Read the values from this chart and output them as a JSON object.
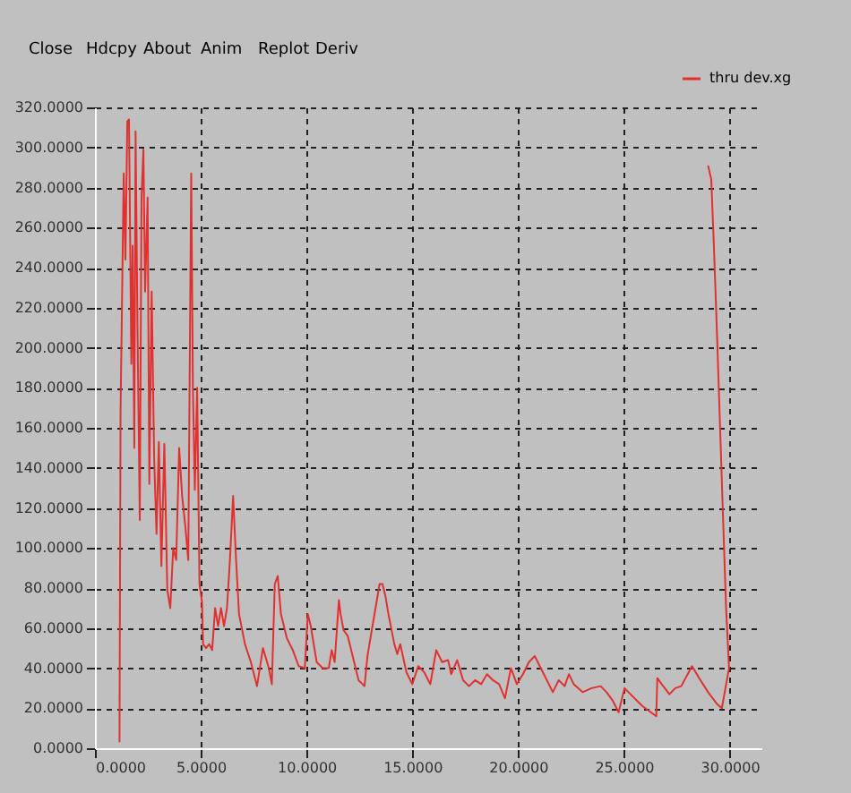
{
  "chart_data": {
    "type": "line",
    "annotations": [
      "Close",
      "Hdcpy",
      "About",
      "Anim",
      "Replot",
      "Deriv"
    ],
    "x": [
      1.16,
      1.21,
      1.36,
      1.44,
      1.53,
      1.61,
      1.72,
      1.78,
      1.86,
      1.92,
      2.01,
      2.12,
      2.2,
      2.29,
      2.37,
      2.49,
      2.57,
      2.68,
      2.8,
      2.91,
      3.02,
      3.14,
      3.28,
      3.42,
      3.56,
      3.7,
      3.84,
      3.98,
      4.12,
      4.27,
      4.41,
      4.55,
      4.63,
      4.72,
      4.83,
      4.94,
      5.06,
      5.11,
      5.25,
      5.4,
      5.54,
      5.68,
      5.82,
      5.96,
      6.1,
      6.24,
      6.38,
      6.53,
      6.67,
      6.81,
      7.09,
      7.37,
      7.66,
      7.94,
      8.22,
      8.36,
      8.5,
      8.64,
      8.79,
      9.07,
      9.35,
      9.63,
      9.92,
      10.06,
      10.2,
      10.48,
      10.76,
      11.05,
      11.19,
      11.33,
      11.53,
      11.61,
      11.75,
      11.95,
      12.18,
      12.46,
      12.74,
      12.88,
      13.02,
      13.31,
      13.45,
      13.59,
      13.73,
      13.87,
      14.15,
      14.29,
      14.43,
      14.72,
      15.0,
      15.28,
      15.56,
      15.85,
      16.13,
      16.41,
      16.69,
      16.84,
      17.12,
      17.4,
      17.68,
      17.97,
      18.25,
      18.53,
      18.81,
      19.1,
      19.38,
      19.66,
      19.94,
      20.23,
      20.51,
      20.79,
      21.07,
      21.36,
      21.64,
      21.92,
      22.2,
      22.4,
      22.63,
      23.05,
      23.47,
      23.9,
      24.18,
      24.46,
      24.75,
      25.03,
      25.31,
      25.88,
      26.53,
      26.58,
      26.86,
      27.15,
      27.43,
      27.71,
      28.22,
      28.56,
      28.98,
      29.41,
      29.63,
      29.97,
      29.83,
      29.69,
      29.55,
      29.41,
      29.26,
      29.13,
      28.98
    ],
    "series": [
      {
        "name": "thru dev.xg",
        "color": "#e03030",
        "values": [
          3,
          168,
          287,
          244,
          313,
          314,
          192,
          251,
          150,
          308,
          210,
          114,
          275,
          299,
          228,
          275,
          132,
          228,
          144,
          107,
          153,
          91,
          152,
          79,
          70,
          100,
          94,
          150,
          126,
          111,
          94,
          287,
          180,
          129,
          180,
          82,
          73,
          52,
          50,
          52,
          49,
          70,
          61,
          70,
          61,
          70,
          94,
          126,
          94,
          67,
          52,
          43,
          31,
          50,
          40,
          32,
          82,
          86,
          67,
          55,
          49,
          41,
          40,
          67,
          61,
          43,
          40,
          40,
          49,
          43,
          74,
          67,
          59,
          56,
          46,
          34,
          31,
          46,
          55,
          73,
          82,
          82,
          76,
          67,
          52,
          47,
          52,
          38,
          32,
          41,
          38,
          32,
          49,
          43,
          44,
          37,
          44,
          34,
          31,
          34,
          32,
          37,
          34,
          32,
          25,
          40,
          32,
          37,
          43,
          46,
          40,
          34,
          28,
          34,
          31,
          37,
          32,
          28,
          30,
          31,
          28,
          24,
          18,
          30,
          27,
          21,
          16,
          35,
          31,
          27,
          30,
          31,
          41,
          35,
          28,
          22,
          20,
          40,
          70,
          114,
          159,
          204,
          249,
          284,
          291
        ]
      }
    ],
    "xlim": [
      0,
      31.5
    ],
    "ylim": [
      0,
      320
    ],
    "xticks": [
      {
        "value": 0,
        "label": "0.0000"
      },
      {
        "value": 5,
        "label": "5.0000"
      },
      {
        "value": 10,
        "label": "10.0000"
      },
      {
        "value": 15,
        "label": "15.0000"
      },
      {
        "value": 20,
        "label": "20.0000"
      },
      {
        "value": 25,
        "label": "25.0000"
      },
      {
        "value": 30,
        "label": "30.0000"
      }
    ],
    "yticks": [
      {
        "value": 0,
        "label": "0.0000"
      },
      {
        "value": 20,
        "label": "20.0000"
      },
      {
        "value": 40,
        "label": "40.0000"
      },
      {
        "value": 60,
        "label": "60.0000"
      },
      {
        "value": 80,
        "label": "80.0000"
      },
      {
        "value": 100,
        "label": "100.0000"
      },
      {
        "value": 120,
        "label": "120.0000"
      },
      {
        "value": 140,
        "label": "140.0000"
      },
      {
        "value": 160,
        "label": "160.0000"
      },
      {
        "value": 180,
        "label": "180.0000"
      },
      {
        "value": 200,
        "label": "200.0000"
      },
      {
        "value": 220,
        "label": "220.0000"
      },
      {
        "value": 240,
        "label": "240.0000"
      },
      {
        "value": 260,
        "label": "260.0000"
      },
      {
        "value": 280,
        "label": "280.0000"
      },
      {
        "value": 300,
        "label": "300.0000"
      },
      {
        "value": 320,
        "label": "320.0000"
      }
    ],
    "grid": true,
    "legend": "top right",
    "marker": "none",
    "line_style": "solid"
  }
}
